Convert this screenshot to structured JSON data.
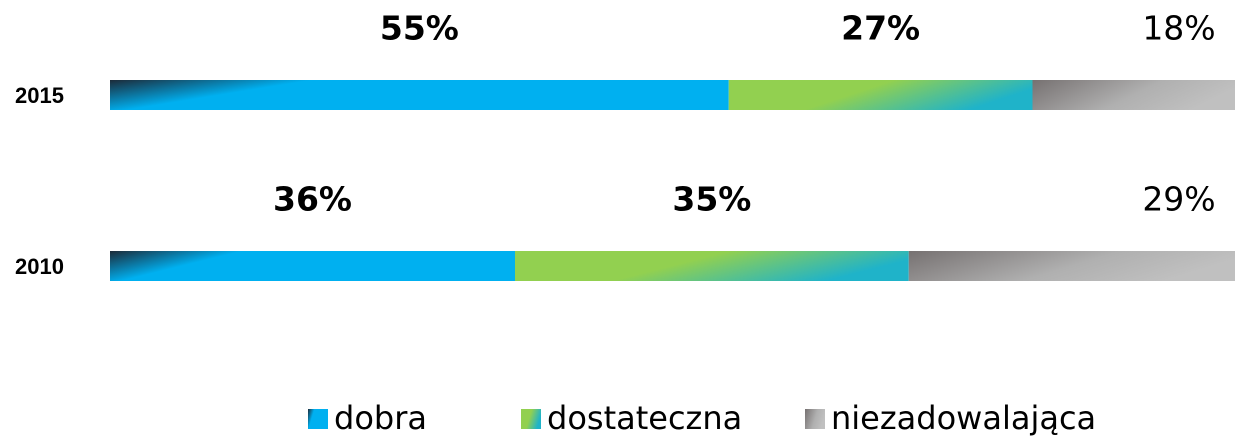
{
  "chart_data": {
    "type": "stacked-bar-horizontal",
    "categories": [
      "2015",
      "2010"
    ],
    "xlim": [
      0,
      100
    ],
    "series": [
      {
        "name": "dobra",
        "color": "#00b0f0",
        "values": [
          55,
          36
        ],
        "value_labels": [
          "55%",
          "36%"
        ]
      },
      {
        "name": "dostateczna",
        "color": "#92d050",
        "values": [
          27,
          35
        ],
        "value_labels": [
          "27%",
          "35%"
        ]
      },
      {
        "name": "niezadowalająca",
        "color": "#c0c0c0",
        "values": [
          18,
          29
        ],
        "value_labels": [
          "18%",
          "29%"
        ]
      }
    ],
    "legend": "bottom"
  }
}
